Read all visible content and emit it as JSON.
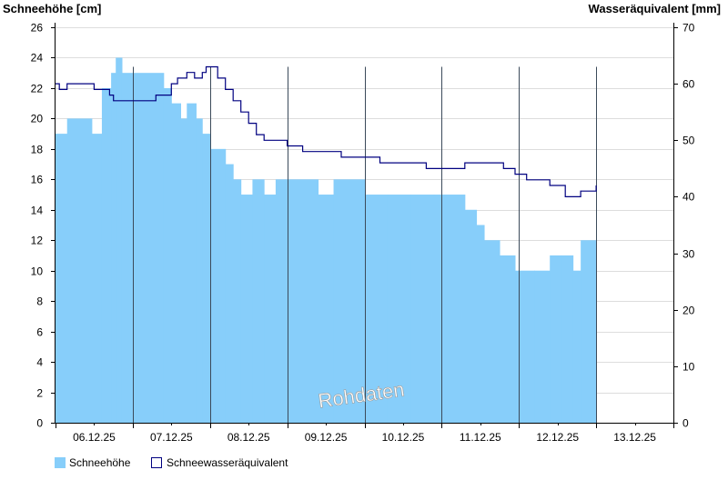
{
  "chart_data": {
    "type": "area",
    "ylabel_left": "Schneehöhe [cm]",
    "ylabel_right": "Wasseräquivalent [mm]",
    "ylim_left": [
      0,
      26
    ],
    "ylim_right": [
      0,
      70
    ],
    "yticks_left": [
      0,
      2,
      4,
      6,
      8,
      10,
      12,
      14,
      16,
      18,
      20,
      22,
      24,
      26
    ],
    "yticks_right": [
      0,
      10,
      20,
      30,
      40,
      50,
      60,
      70
    ],
    "x_day_labels": [
      "06.12.25",
      "07.12.25",
      "08.12.25",
      "09.12.25",
      "10.12.25",
      "11.12.25",
      "12.12.25",
      "13.12.25"
    ],
    "x_range_days": [
      0,
      8
    ],
    "annotation": "Rohdaten",
    "grid": true,
    "legend_position": "bottom-left",
    "colors": {
      "snow": "#87CEFA",
      "swe": "#000080",
      "grid": "#dddddd"
    },
    "series": [
      {
        "name": "Schneehöhe",
        "axis": "left",
        "style": "area",
        "x_days": [
          0.0,
          0.15,
          0.47,
          0.6,
          0.72,
          0.78,
          0.86,
          1.0,
          1.4,
          1.5,
          1.62,
          1.7,
          1.82,
          1.9,
          2.0,
          2.2,
          2.3,
          2.4,
          2.55,
          2.7,
          2.85,
          3.0,
          3.4,
          3.6,
          4.0,
          4.3,
          4.6,
          4.9,
          5.3,
          5.45,
          5.55,
          5.75,
          5.95,
          6.2,
          6.4,
          6.55,
          6.7,
          6.8,
          7.0
        ],
        "values": [
          19,
          20,
          19,
          22,
          23,
          24,
          23,
          23,
          22,
          21,
          20,
          21,
          20,
          19,
          18,
          17,
          16,
          15,
          16,
          15,
          16,
          16,
          15,
          16,
          15,
          15,
          15,
          15,
          14,
          13,
          12,
          11,
          10,
          10,
          11,
          11,
          10,
          12,
          12
        ]
      },
      {
        "name": "Schneewasseräquivalent",
        "axis": "right",
        "style": "line",
        "x_days": [
          0.0,
          0.05,
          0.15,
          0.5,
          0.7,
          0.75,
          1.0,
          1.3,
          1.5,
          1.58,
          1.7,
          1.8,
          1.9,
          1.95,
          2.05,
          2.1,
          2.2,
          2.3,
          2.4,
          2.5,
          2.6,
          2.7,
          2.8,
          3.0,
          3.2,
          3.4,
          3.7,
          4.0,
          4.2,
          4.5,
          4.8,
          5.0,
          5.3,
          5.55,
          5.8,
          5.95,
          6.1,
          6.2,
          6.4,
          6.6,
          6.8,
          7.0
        ],
        "values": [
          60,
          59,
          60,
          59,
          58,
          57,
          57,
          58,
          60,
          61,
          62,
          61,
          62,
          63,
          63,
          61,
          59,
          57,
          55,
          53,
          51,
          50,
          50,
          49,
          48,
          48,
          47,
          47,
          46,
          46,
          45,
          45,
          46,
          46,
          45,
          44,
          43,
          43,
          42,
          40,
          41,
          42
        ]
      }
    ]
  }
}
